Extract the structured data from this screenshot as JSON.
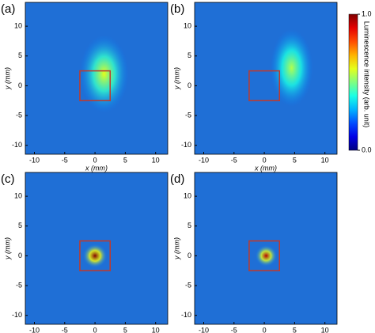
{
  "chart_data": [
    {
      "type": "heatmap",
      "panel": "(a)",
      "xlabel": "x (mm)",
      "ylabel": "y (mm)",
      "xlim": [
        -11.5,
        12
      ],
      "ylim": [
        -11.5,
        14
      ],
      "xticks": [
        -10,
        -5,
        0,
        5,
        10
      ],
      "yticks": [
        -10,
        -5,
        0,
        5,
        10
      ],
      "roi": {
        "x": [
          -2.5,
          2.5
        ],
        "y": [
          -2.5,
          2.5
        ],
        "color": "#c0392b"
      },
      "spot": {
        "x": 1.5,
        "y": 2,
        "rx": 4,
        "ry": 6.5,
        "peak": 0.6
      }
    },
    {
      "type": "heatmap",
      "panel": "(b)",
      "xlabel": "x (mm)",
      "ylabel": "y (mm)",
      "xlim": [
        -11.5,
        12
      ],
      "ylim": [
        -11.5,
        14
      ],
      "xticks": [
        -10,
        -5,
        0,
        5,
        10
      ],
      "yticks": [
        -10,
        -5,
        0,
        5,
        10
      ],
      "roi": {
        "x": [
          -2.5,
          2.5
        ],
        "y": [
          -2.5,
          2.5
        ],
        "color": "#c0392b"
      },
      "spot": {
        "x": 4.5,
        "y": 3,
        "rx": 3.5,
        "ry": 6.5,
        "peak": 0.55
      }
    },
    {
      "type": "heatmap",
      "panel": "(c)",
      "xlabel": "x (mm)",
      "ylabel": "y (mm)",
      "xlim": [
        -11.5,
        12
      ],
      "ylim": [
        -11.5,
        14
      ],
      "xticks": [
        -10,
        -5,
        0,
        5,
        10
      ],
      "yticks": [
        -10,
        -5,
        0,
        5,
        10
      ],
      "roi": {
        "x": [
          -2.5,
          2.5
        ],
        "y": [
          -2.5,
          2.5
        ],
        "color": "#c0392b"
      },
      "spot": {
        "x": 0,
        "y": 0,
        "rx": 2,
        "ry": 2,
        "peak": 1.0
      }
    },
    {
      "type": "heatmap",
      "panel": "(d)",
      "xlabel": "x (mm)",
      "ylabel": "y (mm)",
      "xlim": [
        -11.5,
        12
      ],
      "ylim": [
        -11.5,
        14
      ],
      "xticks": [
        -10,
        -5,
        0,
        5,
        10
      ],
      "yticks": [
        -10,
        -5,
        0,
        5,
        10
      ],
      "roi": {
        "x": [
          -2.5,
          2.5
        ],
        "y": [
          -2.5,
          2.5
        ],
        "color": "#c0392b"
      },
      "spot": {
        "x": 0.3,
        "y": 0,
        "rx": 1.8,
        "ry": 1.8,
        "peak": 0.95
      }
    },
    {
      "type": "colorbar",
      "label": "Luminescence intensity (arb. unit)",
      "lim": [
        0,
        1
      ],
      "ticks": [
        {
          "value": 0,
          "label": "0.0"
        },
        {
          "value": 1,
          "label": "1.0"
        }
      ]
    }
  ]
}
